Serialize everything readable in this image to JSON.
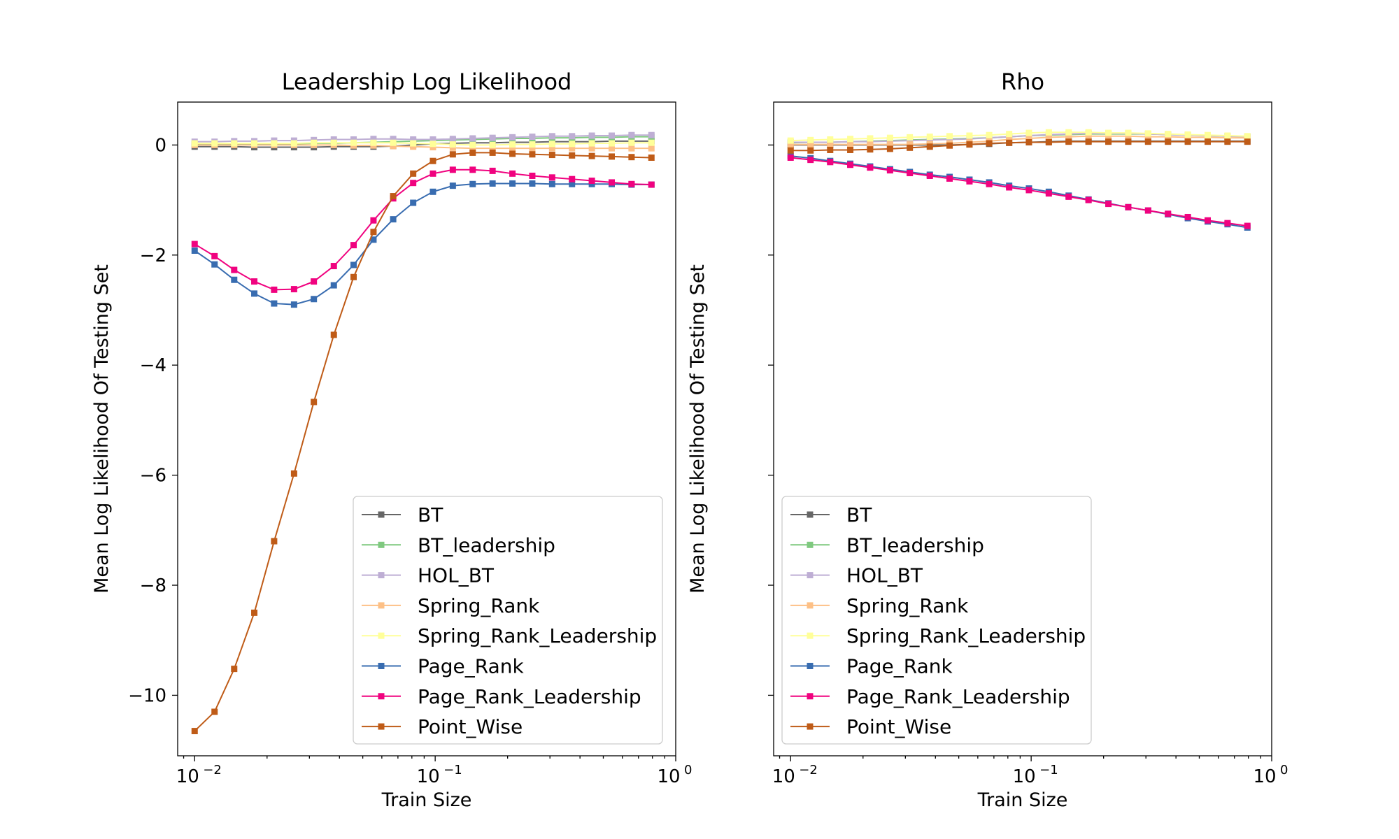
{
  "chart_data": [
    {
      "type": "line",
      "title": "Leadership Log Likelihood",
      "xlabel": "Train Size",
      "ylabel": "Mean Log Likelihood Of Testing Set",
      "xscale": "log",
      "xlim": [
        0.0085,
        1.0
      ],
      "ylim": [
        -11.1,
        0.78
      ],
      "xticks": [
        0.01,
        0.1,
        1
      ],
      "xtick_labels": [
        "10",
        "10",
        "10"
      ],
      "xtick_exponents": [
        "−2",
        "−1",
        "0"
      ],
      "yticks": [
        0,
        -2,
        -4,
        -6,
        -8,
        -10
      ],
      "ytick_labels": [
        "0",
        "−2",
        "−4",
        "−6",
        "−8",
        "−10"
      ],
      "legend": "lower-right",
      "grid": false,
      "x": [
        0.01,
        0.0121,
        0.0146,
        0.0177,
        0.0214,
        0.0259,
        0.0313,
        0.0379,
        0.0458,
        0.0554,
        0.0669,
        0.081,
        0.0979,
        0.1184,
        0.1432,
        0.1732,
        0.2095,
        0.2533,
        0.3064,
        0.3705,
        0.4481,
        0.5419,
        0.6553,
        0.7925
      ],
      "series": [
        {
          "name": "BT",
          "color": "#666666",
          "values": [
            -0.03,
            -0.03,
            -0.03,
            -0.04,
            -0.04,
            -0.04,
            -0.04,
            -0.03,
            -0.03,
            -0.03,
            -0.02,
            0.0,
            0.02,
            0.03,
            0.04,
            0.04,
            0.05,
            0.05,
            0.06,
            0.06,
            0.06,
            0.07,
            0.07,
            0.07
          ]
        },
        {
          "name": "BT_leadership",
          "color": "#7fc97f",
          "values": [
            0.02,
            0.02,
            0.02,
            0.02,
            0.02,
            0.02,
            0.03,
            0.03,
            0.04,
            0.05,
            0.06,
            0.07,
            0.08,
            0.09,
            0.1,
            0.11,
            0.12,
            0.12,
            0.13,
            0.13,
            0.14,
            0.14,
            0.15,
            0.15
          ]
        },
        {
          "name": "HOL_BT",
          "color": "#beaed4",
          "values": [
            0.06,
            0.06,
            0.07,
            0.07,
            0.08,
            0.08,
            0.09,
            0.1,
            0.1,
            0.11,
            0.11,
            0.1,
            0.1,
            0.11,
            0.12,
            0.13,
            0.14,
            0.15,
            0.16,
            0.16,
            0.17,
            0.17,
            0.18,
            0.18
          ]
        },
        {
          "name": "Spring_Rank",
          "color": "#fdc086",
          "values": [
            0.0,
            0.0,
            0.0,
            0.0,
            0.0,
            0.0,
            0.0,
            0.0,
            -0.01,
            -0.01,
            -0.02,
            -0.03,
            -0.04,
            -0.05,
            -0.06,
            -0.06,
            -0.06,
            -0.06,
            -0.06,
            -0.06,
            -0.06,
            -0.06,
            -0.06,
            -0.06
          ]
        },
        {
          "name": "Spring_Rank_Leadership",
          "color": "#ffff99",
          "values": [
            0.03,
            0.03,
            0.03,
            0.03,
            0.03,
            0.03,
            0.04,
            0.04,
            0.04,
            0.04,
            0.04,
            0.03,
            0.02,
            0.01,
            0.0,
            0.0,
            0.01,
            0.01,
            0.02,
            0.02,
            0.03,
            0.03,
            0.04,
            0.04
          ]
        },
        {
          "name": "Page_Rank",
          "color": "#386cb0",
          "values": [
            -1.92,
            -2.17,
            -2.45,
            -2.7,
            -2.88,
            -2.9,
            -2.8,
            -2.55,
            -2.18,
            -1.72,
            -1.35,
            -1.05,
            -0.85,
            -0.74,
            -0.71,
            -0.7,
            -0.7,
            -0.7,
            -0.71,
            -0.71,
            -0.71,
            -0.71,
            -0.72,
            -0.72
          ]
        },
        {
          "name": "Page_Rank_Leadership",
          "color": "#f0027f",
          "values": [
            -1.8,
            -2.02,
            -2.27,
            -2.48,
            -2.63,
            -2.62,
            -2.48,
            -2.2,
            -1.82,
            -1.37,
            -0.97,
            -0.69,
            -0.52,
            -0.45,
            -0.45,
            -0.47,
            -0.52,
            -0.56,
            -0.59,
            -0.62,
            -0.65,
            -0.68,
            -0.71,
            -0.72
          ]
        },
        {
          "name": "Point_Wise",
          "color": "#bf5b17",
          "values": [
            -10.65,
            -10.3,
            -9.52,
            -8.5,
            -7.2,
            -5.97,
            -4.67,
            -3.45,
            -2.4,
            -1.58,
            -0.93,
            -0.52,
            -0.29,
            -0.17,
            -0.14,
            -0.14,
            -0.16,
            -0.17,
            -0.18,
            -0.19,
            -0.2,
            -0.21,
            -0.22,
            -0.23
          ]
        }
      ]
    },
    {
      "type": "line",
      "title": "Rho",
      "xlabel": "Train Size",
      "ylabel": "Mean Log Likelihood Of Testing Set",
      "xscale": "log",
      "xlim": [
        0.0085,
        1.0
      ],
      "ylim": [
        -11.1,
        0.78
      ],
      "xticks": [
        0.01,
        0.1,
        1
      ],
      "xtick_labels": [
        "10",
        "10",
        "10"
      ],
      "xtick_exponents": [
        "−2",
        "−1",
        "0"
      ],
      "yticks": [
        0,
        -2,
        -4,
        -6,
        -8,
        -10
      ],
      "ytick_labels": [],
      "legend": "lower-left",
      "grid": false,
      "x": [
        0.01,
        0.0121,
        0.0146,
        0.0177,
        0.0214,
        0.0259,
        0.0313,
        0.0379,
        0.0458,
        0.0554,
        0.0669,
        0.081,
        0.0979,
        0.1184,
        0.1432,
        0.1732,
        0.2095,
        0.2533,
        0.3064,
        0.3705,
        0.4481,
        0.5419,
        0.6553,
        0.7925
      ],
      "series": [
        {
          "name": "BT",
          "color": "#666666",
          "values": [
            0.0,
            0.0,
            0.0,
            0.0,
            0.0,
            0.0,
            0.0,
            0.0,
            0.0,
            0.01,
            0.02,
            0.04,
            0.05,
            0.06,
            0.07,
            0.07,
            0.07,
            0.07,
            0.07,
            0.07,
            0.07,
            0.07,
            0.07,
            0.07
          ]
        },
        {
          "name": "BT_leadership",
          "color": "#7fc97f",
          "values": [
            0.04,
            0.05,
            0.05,
            0.06,
            0.07,
            0.08,
            0.09,
            0.1,
            0.11,
            0.12,
            0.13,
            0.15,
            0.17,
            0.18,
            0.19,
            0.2,
            0.2,
            0.2,
            0.2,
            0.19,
            0.18,
            0.17,
            0.16,
            0.15
          ]
        },
        {
          "name": "HOL_BT",
          "color": "#beaed4",
          "values": [
            0.05,
            0.05,
            0.05,
            0.06,
            0.06,
            0.07,
            0.08,
            0.09,
            0.1,
            0.11,
            0.13,
            0.15,
            0.17,
            0.19,
            0.2,
            0.21,
            0.21,
            0.21,
            0.2,
            0.19,
            0.18,
            0.17,
            0.16,
            0.15
          ]
        },
        {
          "name": "Spring_Rank",
          "color": "#fdc086",
          "values": [
            0.01,
            0.01,
            0.01,
            0.01,
            0.01,
            0.01,
            0.01,
            0.02,
            0.03,
            0.05,
            0.07,
            0.1,
            0.12,
            0.14,
            0.15,
            0.16,
            0.16,
            0.16,
            0.15,
            0.15,
            0.14,
            0.14,
            0.13,
            0.13
          ]
        },
        {
          "name": "Spring_Rank_Leadership",
          "color": "#ffff99",
          "values": [
            0.08,
            0.09,
            0.1,
            0.11,
            0.12,
            0.13,
            0.14,
            0.15,
            0.16,
            0.17,
            0.18,
            0.2,
            0.22,
            0.23,
            0.23,
            0.23,
            0.22,
            0.22,
            0.21,
            0.2,
            0.19,
            0.18,
            0.17,
            0.16
          ]
        },
        {
          "name": "Page_Rank",
          "color": "#386cb0",
          "values": [
            -0.2,
            -0.24,
            -0.29,
            -0.34,
            -0.39,
            -0.44,
            -0.49,
            -0.54,
            -0.58,
            -0.63,
            -0.68,
            -0.74,
            -0.79,
            -0.85,
            -0.92,
            -0.99,
            -1.06,
            -1.13,
            -1.19,
            -1.26,
            -1.33,
            -1.39,
            -1.44,
            -1.5
          ]
        },
        {
          "name": "Page_Rank_Leadership",
          "color": "#f0027f",
          "values": [
            -0.23,
            -0.27,
            -0.31,
            -0.36,
            -0.41,
            -0.46,
            -0.51,
            -0.56,
            -0.61,
            -0.66,
            -0.71,
            -0.77,
            -0.82,
            -0.88,
            -0.94,
            -1.0,
            -1.07,
            -1.13,
            -1.19,
            -1.25,
            -1.31,
            -1.37,
            -1.42,
            -1.47
          ]
        },
        {
          "name": "Point_Wise",
          "color": "#bf5b17",
          "values": [
            -0.1,
            -0.1,
            -0.09,
            -0.09,
            -0.08,
            -0.07,
            -0.05,
            -0.03,
            -0.01,
            0.01,
            0.03,
            0.04,
            0.05,
            0.05,
            0.06,
            0.06,
            0.06,
            0.06,
            0.06,
            0.06,
            0.06,
            0.06,
            0.06,
            0.06
          ]
        }
      ]
    }
  ]
}
